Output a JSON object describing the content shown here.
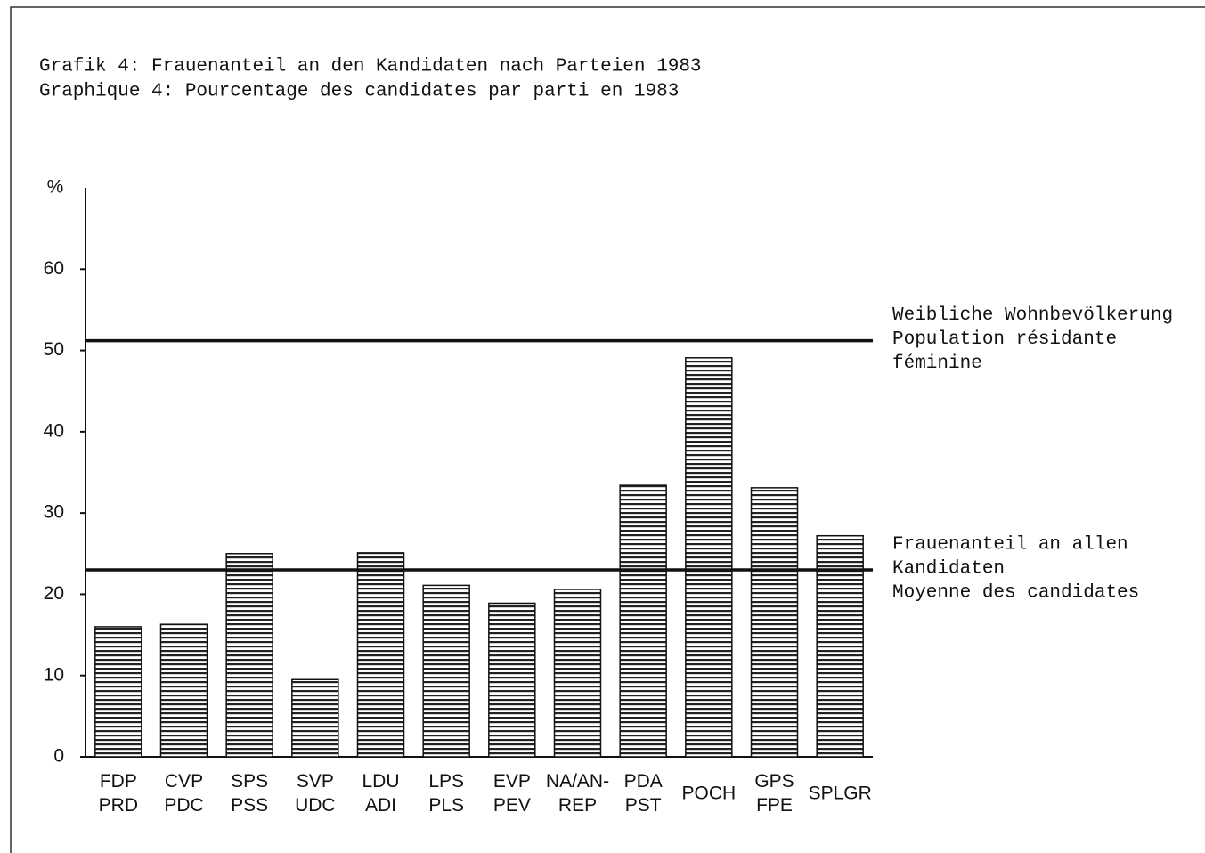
{
  "chart_data": {
    "type": "bar",
    "title": "Grafik 4: Frauenanteil an den Kandidaten nach Parteien 1983",
    "subtitle": "Graphique 4: Pourcentage des candidates par parti en 1983",
    "y_label": "%",
    "categories": [
      [
        "FDP",
        "PRD"
      ],
      [
        "CVP",
        "PDC"
      ],
      [
        "SPS",
        "PSS"
      ],
      [
        "SVP",
        "UDC"
      ],
      [
        "LDU",
        "ADI"
      ],
      [
        "LPS",
        "PLS"
      ],
      [
        "EVP",
        "PEV"
      ],
      [
        "NA/AN-",
        "REP"
      ],
      [
        "PDA",
        "PST"
      ],
      [
        "POCH"
      ],
      [
        "GPS",
        "FPE"
      ],
      [
        "SPLGR"
      ]
    ],
    "values": [
      16.0,
      16.3,
      25.0,
      9.5,
      25.1,
      21.1,
      18.9,
      20.6,
      33.4,
      49.1,
      33.1,
      27.2
    ],
    "color": "#000000",
    "ylim": [
      0,
      70
    ],
    "yticks": [
      0,
      10,
      20,
      30,
      40,
      50,
      60
    ],
    "reference_lines": [
      {
        "value": 51.2,
        "label": [
          "Weibliche Wohnbevölkerung",
          "Population résidante",
          "féminine"
        ]
      },
      {
        "value": 23.0,
        "label": [
          "Frauenanteil an allen",
          "Kandidaten",
          "Moyenne des candidates"
        ]
      }
    ]
  }
}
